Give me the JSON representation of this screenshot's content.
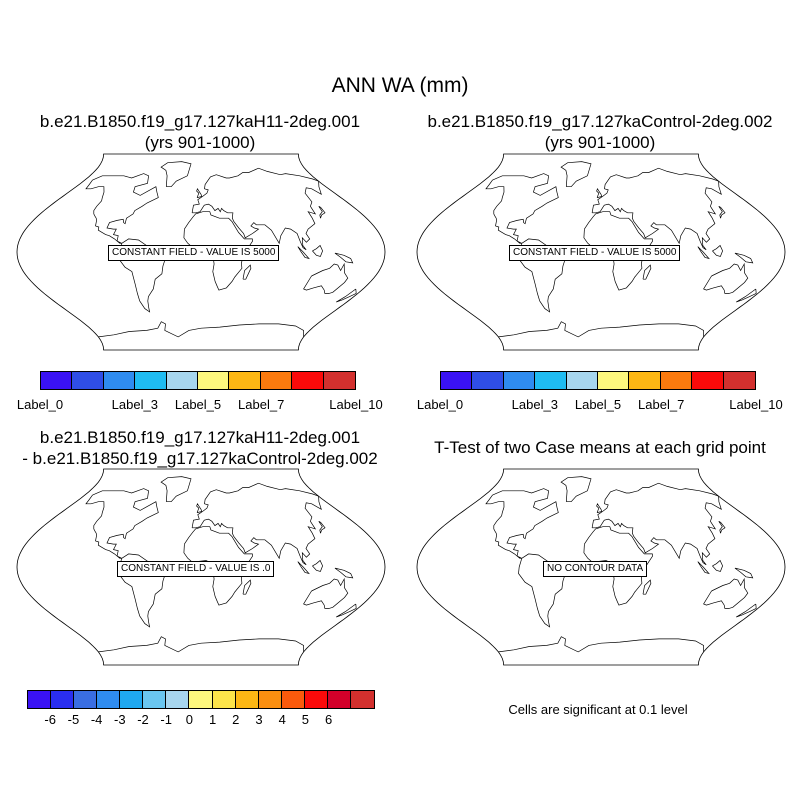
{
  "main_title": "ANN WA (mm)",
  "panels": [
    {
      "title_line1": "b.e21.B1850.f19_g17.127kaH11-2deg.001",
      "title_line2": "(yrs 901-1000)",
      "field_label": "CONSTANT FIELD - VALUE IS 5000"
    },
    {
      "title_line1": "b.e21.B1850.f19_g17.127kaControl-2deg.002",
      "title_line2": "(yrs 901-1000)",
      "field_label": "CONSTANT FIELD - VALUE IS 5000"
    },
    {
      "title_line1": "b.e21.B1850.f19_g17.127kaH11-2deg.001",
      "title_line2": "- b.e21.B1850.f19_g17.127kaControl-2deg.002",
      "field_label": "CONSTANT FIELD - VALUE IS .0"
    },
    {
      "title_line1": "T-Test of two Case means at each grid point",
      "title_line2": "",
      "field_label": "NO CONTOUR DATA"
    }
  ],
  "colorbar_case": {
    "colors": [
      "#3a12f4",
      "#2f4ee6",
      "#2f8cf0",
      "#1fbcf2",
      "#a7d6ee",
      "#fdf77e",
      "#fcb714",
      "#fb7a0e",
      "#fb0a0a",
      "#d3302e"
    ],
    "labels": [
      "Label_0",
      "Label_3",
      "Label_5",
      "Label_7",
      "Label_10"
    ],
    "label_positions": [
      0,
      3,
      5,
      7,
      10
    ]
  },
  "colorbar_diff": {
    "colors": [
      "#3a12f4",
      "#2a2ef0",
      "#3a6ee2",
      "#2f8cf0",
      "#1fa8f0",
      "#6ac6f0",
      "#a7d6ee",
      "#fdf77e",
      "#fce44a",
      "#fcb714",
      "#fb8f10",
      "#fb5a0c",
      "#fb0a0a",
      "#d3002a",
      "#d3302e"
    ],
    "labels": [
      "-6",
      "-5",
      "-4",
      "-3",
      "-2",
      "-1",
      "0",
      "1",
      "2",
      "3",
      "4",
      "5",
      "6"
    ]
  },
  "significance_note": "Cells are significant at 0.1 level"
}
